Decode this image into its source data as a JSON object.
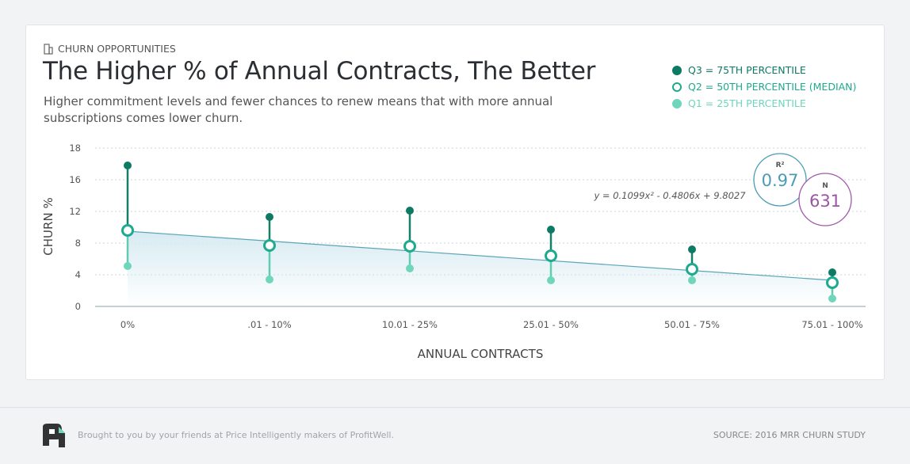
{
  "header": {
    "kicker": "CHURN OPPORTUNITIES",
    "kicker_icon": "building-icon",
    "title": "The Higher % of Annual Contracts, The Better",
    "subtitle": "Higher commitment levels and fewer chances to renew means that with more annual subscriptions comes lower churn."
  },
  "legend": [
    {
      "label": "Q3 = 75TH PERCENTILE",
      "color": "#0d7a64",
      "style": "filled"
    },
    {
      "label": "Q2 = 50TH PERCENTILE (MEDIAN)",
      "color": "#1fa98e",
      "style": "hollow"
    },
    {
      "label": "Q1 = 25TH PERCENTILE",
      "color": "#6fd6bb",
      "style": "filled"
    }
  ],
  "stats": {
    "r2_label": "R²",
    "r2_value": "0.97",
    "n_label": "N",
    "n_value": "631"
  },
  "chart_data": {
    "type": "scatter",
    "xlabel": "ANNUAL CONTRACTS",
    "ylabel": "CHURN %",
    "yticks": [
      "0",
      "4",
      "8",
      "12",
      "16",
      "18"
    ],
    "ylim": [
      0,
      20
    ],
    "grid": true,
    "categories": [
      "0%",
      ".01 - 10%",
      "10.01 - 25%",
      "25.01 - 50%",
      "50.01 - 75%",
      "75.01 - 100%"
    ],
    "series": [
      {
        "name": "Q3 = 75TH PERCENTILE",
        "values": [
          17.8,
          11.3,
          12.1,
          9.7,
          7.2,
          4.3
        ]
      },
      {
        "name": "Q2 = 50TH PERCENTILE (MEDIAN)",
        "values": [
          9.6,
          7.7,
          7.6,
          6.4,
          4.7,
          3.0
        ]
      },
      {
        "name": "Q1 = 25TH PERCENTILE",
        "values": [
          5.1,
          3.4,
          4.8,
          3.3,
          3.3,
          1.0
        ]
      }
    ],
    "trendline": {
      "equation": "y = 0.1099x² - 0.4806x + 9.8027",
      "start": 9.5,
      "end": 3.3
    }
  },
  "footer": {
    "credit": "Brought to you by your friends at Price Intelligently makers of ProfitWell.",
    "source": "SOURCE: 2016 MRR CHURN STUDY"
  }
}
